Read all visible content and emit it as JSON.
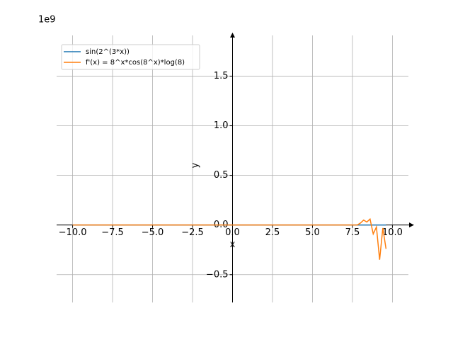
{
  "chart_data": {
    "type": "line",
    "offset_label": "1e9",
    "x_label": "x",
    "y_label": "y",
    "x": [
      -10,
      -5,
      0,
      5,
      7,
      7.6,
      7.8,
      8.0,
      8.2,
      8.4,
      8.6,
      8.8,
      9.0,
      9.2,
      9.4,
      9.6
    ],
    "series": [
      {
        "name": "sin(2^(3*x))",
        "color": "#1f77b4",
        "values": [
          0,
          0,
          0,
          0,
          0,
          0,
          0,
          0,
          0,
          0,
          0,
          0,
          0,
          0,
          0,
          0
        ]
      },
      {
        "name": "f'(x) = 8^x*cos(8^x)*log(8)",
        "color": "#ff7f0e",
        "values": [
          0,
          0,
          0,
          0,
          0,
          0,
          0,
          0.02,
          0.05,
          0.03,
          0.06,
          -0.09,
          -0.02,
          -0.35,
          -0.03,
          -0.24
        ]
      }
    ],
    "xlim": [
      -11,
      11
    ],
    "ylim": [
      -0.78,
      1.91
    ],
    "xticks": [
      {
        "value": -10,
        "label": "−10.0"
      },
      {
        "value": -7.5,
        "label": "−7.5"
      },
      {
        "value": -5,
        "label": "−5.0"
      },
      {
        "value": -2.5,
        "label": "−2.5"
      },
      {
        "value": 0,
        "label": "0.0"
      },
      {
        "value": 2.5,
        "label": "2.5"
      },
      {
        "value": 5,
        "label": "5.0"
      },
      {
        "value": 7.5,
        "label": "7.5"
      },
      {
        "value": 10,
        "label": "10.0"
      }
    ],
    "yticks": [
      {
        "value": -0.5,
        "label": "−0.5"
      },
      {
        "value": 0,
        "label": "0.0"
      },
      {
        "value": 0.5,
        "label": "0.5"
      },
      {
        "value": 1,
        "label": "1.0"
      },
      {
        "value": 1.5,
        "label": "1.5"
      }
    ],
    "grid": true,
    "legend": "upper left"
  }
}
